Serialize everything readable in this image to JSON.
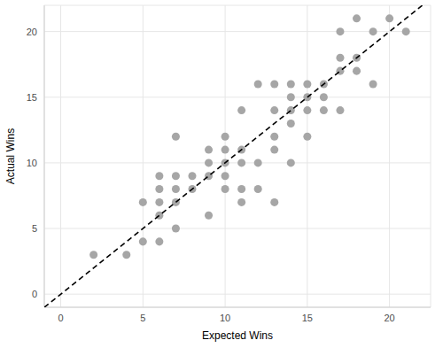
{
  "chart_data": {
    "type": "scatter",
    "x_label": "Expected Wins",
    "y_label": "Actual Wins",
    "series": [
      {
        "type": "scatter",
        "color": "#a6a6a6",
        "marker": "circle",
        "x": [
          2,
          4,
          5,
          5,
          6,
          6,
          6,
          6,
          6,
          7,
          7,
          7,
          7,
          7,
          8,
          8,
          9,
          9,
          9,
          9,
          10,
          10,
          10,
          10,
          10,
          11,
          11,
          11,
          11,
          11,
          12,
          12,
          12,
          13,
          13,
          13,
          13,
          13,
          14,
          14,
          14,
          14,
          14,
          15,
          15,
          15,
          15,
          16,
          16,
          16,
          17,
          17,
          17,
          17,
          18,
          18,
          18,
          19,
          19,
          20,
          21
        ],
        "values": [
          3,
          3,
          4,
          7,
          4,
          6,
          7,
          8,
          9,
          5,
          7,
          8,
          9,
          12,
          8,
          9,
          6,
          9,
          10,
          11,
          8,
          9,
          10,
          11,
          12,
          7,
          8,
          10,
          11,
          14,
          8,
          10,
          16,
          7,
          11,
          12,
          14,
          16,
          10,
          13,
          14,
          15,
          16,
          12,
          14,
          15,
          16,
          14,
          15,
          16,
          14,
          17,
          18,
          20,
          17,
          18,
          21,
          16,
          20,
          21,
          20
        ]
      },
      {
        "type": "line",
        "color": "#000000",
        "line_style": "dashed",
        "x": [
          -1,
          22
        ],
        "values": [
          -1,
          22
        ]
      }
    ],
    "xlim": [
      -1,
      22.5
    ],
    "ylim": [
      -1,
      22
    ],
    "xticks": [
      0,
      5,
      10,
      15,
      20
    ],
    "yticks": [
      0,
      5,
      10,
      15,
      20
    ],
    "grid": true
  }
}
